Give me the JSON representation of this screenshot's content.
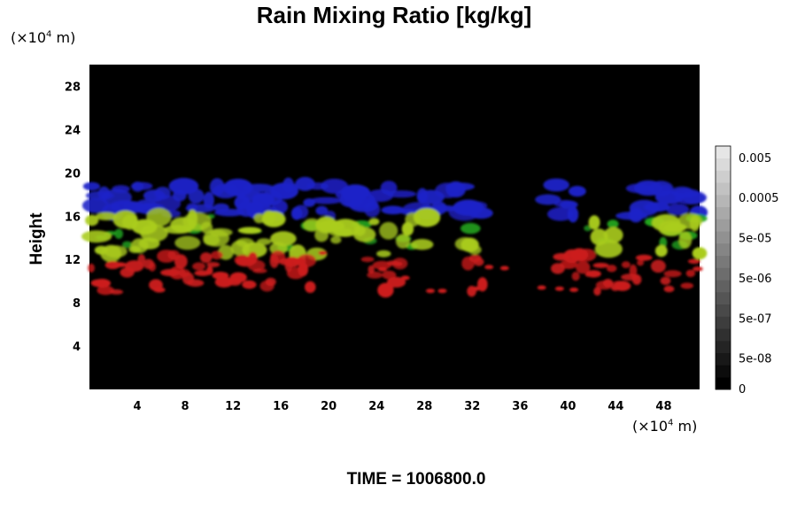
{
  "chart_data": {
    "type": "heatmap",
    "title": "Rain Mixing Ratio [kg/kg]",
    "ylabel": "Height",
    "xunit": {
      "prefix": "(×10",
      "exp": "4",
      "suffix": " m)"
    },
    "yunit": {
      "prefix": "(×10",
      "exp": "4",
      "suffix": " m)"
    },
    "x_ticks": [
      "4",
      "8",
      "12",
      "16",
      "20",
      "24",
      "28",
      "32",
      "36",
      "40",
      "44",
      "48"
    ],
    "x_tick_values": [
      4,
      8,
      12,
      16,
      20,
      24,
      28,
      32,
      36,
      40,
      44,
      48
    ],
    "y_ticks": [
      "4",
      "8",
      "12",
      "16",
      "20",
      "24",
      "28"
    ],
    "y_tick_values": [
      4,
      8,
      12,
      16,
      20,
      24,
      28
    ],
    "xlim": [
      0,
      51
    ],
    "ylim": [
      0,
      30
    ],
    "colorbar": {
      "tick_labels": [
        "0.005",
        "0.0005",
        "5e-05",
        "5e-06",
        "5e-07",
        "5e-08",
        "0"
      ],
      "levels": 20
    },
    "layers": [
      {
        "color": "#1e22c8",
        "height_range": [
          16,
          19
        ]
      },
      {
        "color": "#aacc1e",
        "height_range": [
          12.5,
          16
        ]
      },
      {
        "color": "#22a61e",
        "height_range": [
          13,
          16
        ]
      },
      {
        "color": "#cc1c1c",
        "height_range": [
          9,
          12.5
        ]
      }
    ],
    "time_label": "TIME = 1006800.0"
  }
}
